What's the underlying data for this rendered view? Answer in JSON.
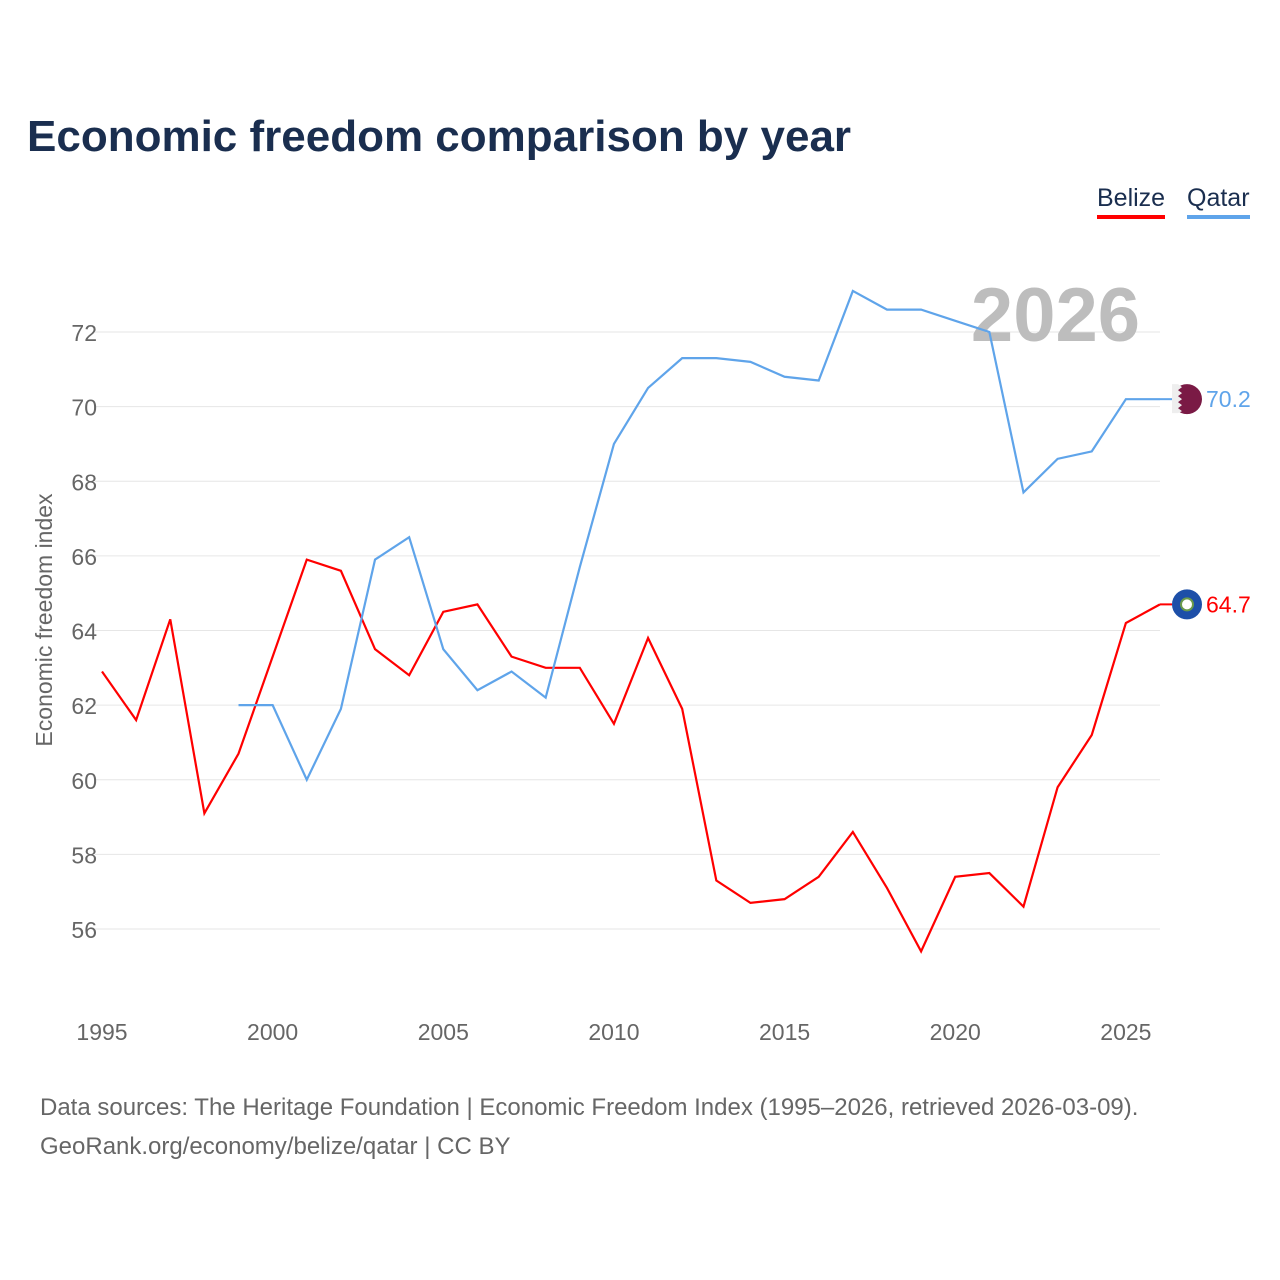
{
  "chart_data": {
    "type": "line",
    "title": "Economic freedom comparison by year",
    "ylabel": "Economic freedom index",
    "xlabel": "",
    "year_watermark": "2026",
    "xlim": [
      1995,
      2026
    ],
    "ylim": [
      54,
      74
    ],
    "xticks": [
      1995,
      2000,
      2005,
      2010,
      2015,
      2020,
      2025
    ],
    "yticks": [
      56,
      58,
      60,
      62,
      64,
      66,
      68,
      70,
      72
    ],
    "grid": true,
    "legend_position": "top-right",
    "series": [
      {
        "name": "Belize",
        "color": "#ff0000",
        "end_label": "64.7",
        "x": [
          1995,
          1996,
          1997,
          1998,
          1999,
          2000,
          2001,
          2002,
          2003,
          2004,
          2005,
          2006,
          2007,
          2008,
          2009,
          2010,
          2011,
          2012,
          2013,
          2014,
          2015,
          2016,
          2017,
          2018,
          2019,
          2020,
          2021,
          2022,
          2023,
          2024,
          2025,
          2026
        ],
        "values": [
          62.9,
          61.6,
          64.3,
          59.1,
          60.7,
          63.3,
          65.9,
          65.6,
          63.5,
          62.8,
          64.5,
          64.7,
          63.3,
          63.0,
          63.0,
          61.5,
          63.8,
          61.9,
          57.3,
          56.7,
          56.8,
          57.4,
          58.6,
          57.1,
          55.4,
          57.4,
          57.5,
          56.6,
          59.8,
          61.2,
          64.2,
          64.7
        ]
      },
      {
        "name": "Qatar",
        "color": "#5fa4ea",
        "end_label": "70.2",
        "x": [
          1999,
          2000,
          2001,
          2002,
          2003,
          2004,
          2005,
          2006,
          2007,
          2008,
          2009,
          2010,
          2011,
          2012,
          2013,
          2014,
          2015,
          2016,
          2017,
          2018,
          2019,
          2020,
          2021,
          2022,
          2023,
          2024,
          2025,
          2026
        ],
        "values": [
          62.0,
          62.0,
          60.0,
          61.9,
          65.9,
          66.5,
          63.5,
          62.4,
          62.9,
          62.2,
          65.7,
          69.0,
          70.5,
          71.3,
          71.3,
          71.2,
          70.8,
          70.7,
          73.1,
          72.6,
          72.6,
          72.3,
          72.0,
          67.7,
          68.6,
          68.8,
          70.2,
          70.2
        ]
      }
    ]
  },
  "footer": {
    "line1": "Data sources: The Heritage Foundation | Economic Freedom Index (1995–2026, retrieved 2026-03-09).",
    "line2": "GeoRank.org/economy/belize/qatar | CC BY"
  }
}
